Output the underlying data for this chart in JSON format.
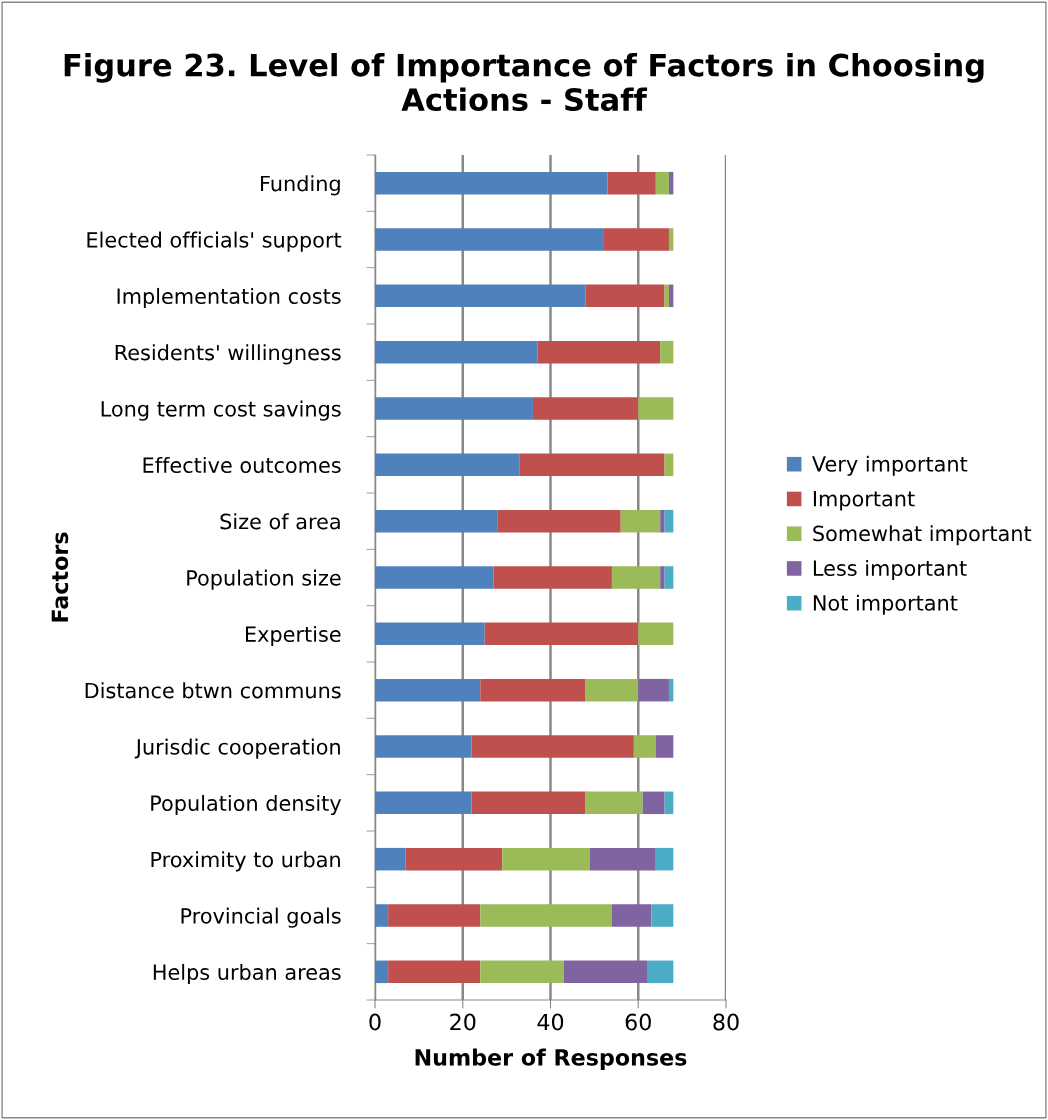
{
  "chart_data": {
    "type": "bar",
    "orientation": "horizontal",
    "stacked": true,
    "title": "Figure 23. Level of Importance of Factors in Choosing Actions - Staff",
    "xlabel": "Number of Responses",
    "ylabel": "Factors",
    "categories": [
      "Funding",
      "Elected officials' support",
      "Implementation costs",
      "Residents' willingness",
      "Long term cost savings",
      "Effective outcomes",
      "Size of area",
      "Population size",
      "Expertise",
      "Distance btwn communs",
      "Jurisdic cooperation",
      "Population density",
      "Proximity to urban",
      "Provincial goals",
      "Helps urban areas"
    ],
    "series": [
      {
        "name": "Very important",
        "color": "#4f81bd",
        "values": [
          53,
          52,
          48,
          37,
          36,
          33,
          28,
          27,
          25,
          24,
          22,
          22,
          7,
          3,
          3
        ]
      },
      {
        "name": "Important",
        "color": "#c0504d",
        "values": [
          11,
          15,
          18,
          28,
          24,
          33,
          28,
          27,
          35,
          24,
          37,
          26,
          22,
          21,
          21
        ]
      },
      {
        "name": "Somewhat important",
        "color": "#9bbb59",
        "values": [
          3,
          1,
          1,
          3,
          8,
          2,
          9,
          11,
          8,
          12,
          5,
          13,
          20,
          30,
          19
        ]
      },
      {
        "name": "Less important",
        "color": "#8064a2",
        "values": [
          1,
          0,
          1,
          0,
          0,
          0,
          1,
          1,
          0,
          7,
          4,
          5,
          15,
          9,
          19
        ]
      },
      {
        "name": "Not important",
        "color": "#4bacc6",
        "values": [
          0,
          0,
          0,
          0,
          0,
          0,
          2,
          2,
          0,
          1,
          0,
          2,
          4,
          5,
          6
        ]
      }
    ],
    "xlim": [
      0,
      80
    ],
    "xticks": [
      0,
      20,
      40,
      60,
      80
    ],
    "grid": "x",
    "legend": "right"
  }
}
